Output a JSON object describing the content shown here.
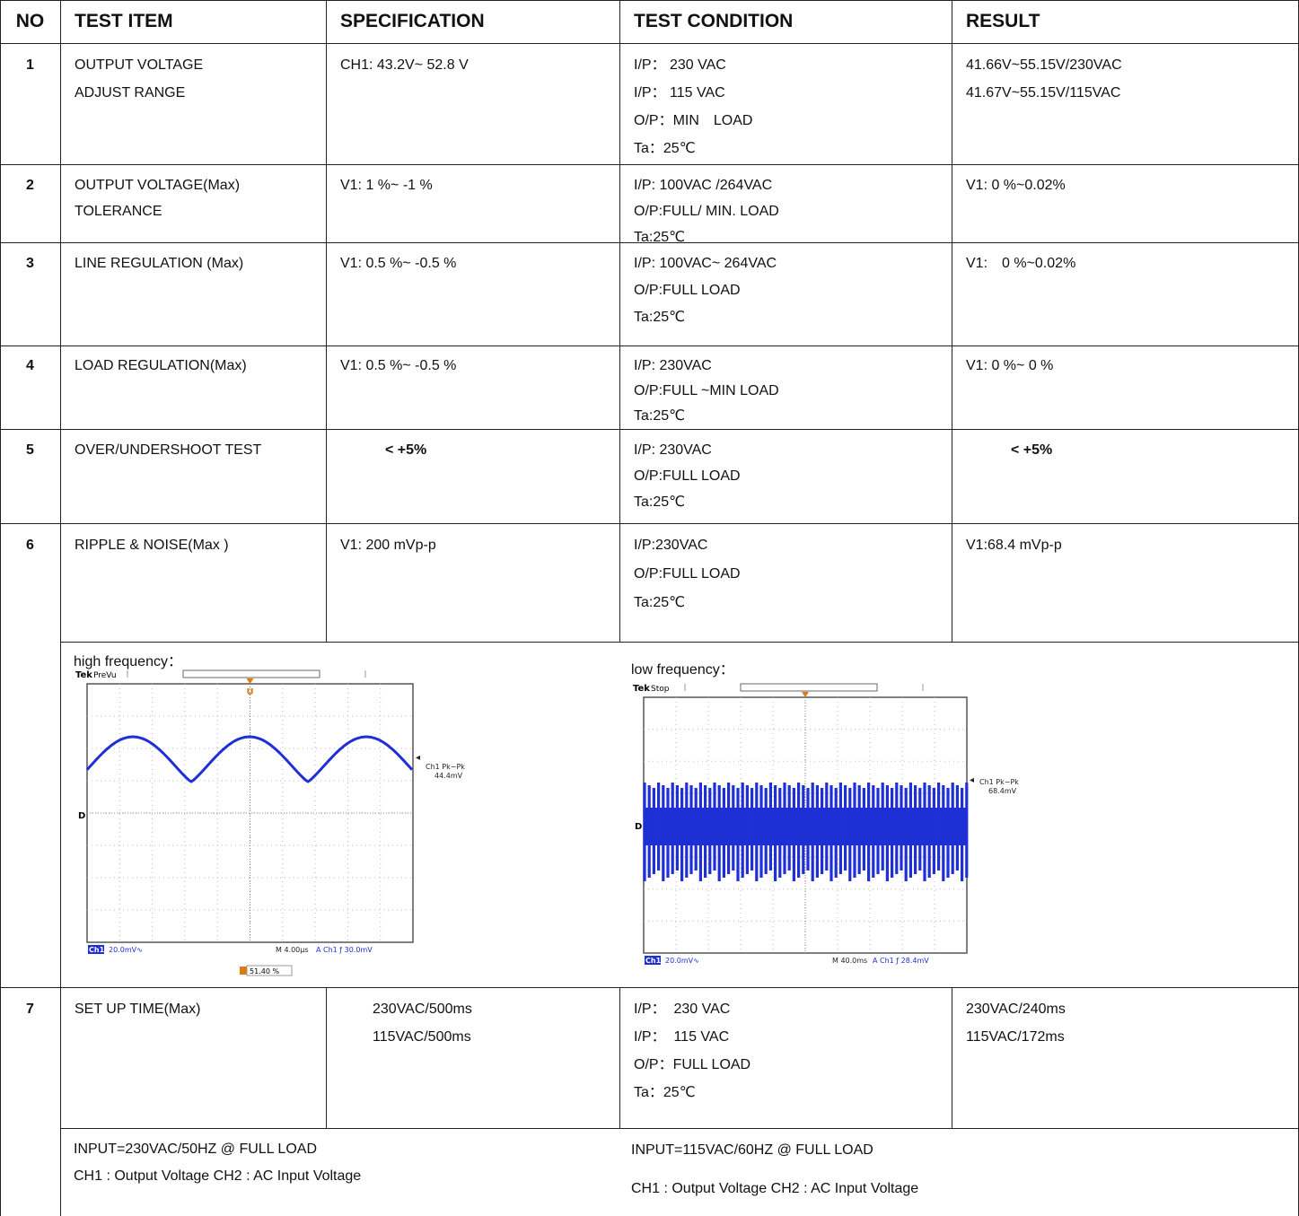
{
  "table": {
    "header": [
      "NO",
      "TEST ITEM",
      "SPECIFICATION",
      "TEST CONDITION",
      "RESULT"
    ],
    "rows": [
      {
        "no": "1",
        "item": [
          "OUTPUT VOLTAGE",
          "ADJUST RANGE"
        ],
        "spec": [
          "CH1: 43.2V~ 52.8 V"
        ],
        "condition": [
          "I/P： 230 VAC",
          "I/P： 115 VAC",
          "O/P：MIN　LOAD",
          "Ta：25℃"
        ],
        "result": [
          "41.66V~55.15V/230VAC",
          "41.67V~55.15V/115VAC"
        ]
      },
      {
        "no": "2",
        "item": [
          "OUTPUT VOLTAGE(Max)",
          "TOLERANCE"
        ],
        "spec": [
          "V1: 1 %~ -1 %"
        ],
        "condition": [
          "I/P: 100VAC /264VAC",
          "O/P:FULL/ MIN. LOAD",
          "Ta:25℃"
        ],
        "result": [
          "V1: 0 %~0.02%"
        ]
      },
      {
        "no": "3",
        "item": [
          "LINE REGULATION (Max)"
        ],
        "spec": [
          "V1: 0.5 %~ -0.5 %"
        ],
        "condition": [
          "I/P: 100VAC~ 264VAC",
          "O/P:FULL LOAD",
          "Ta:25℃"
        ],
        "result": [
          "V1:　0 %~0.02%"
        ]
      },
      {
        "no": "4",
        "item": [
          "LOAD REGULATION(Max)"
        ],
        "spec": [
          "V1: 0.5 %~ -0.5 %"
        ],
        "condition": [
          "I/P: 230VAC",
          "O/P:FULL ~MIN LOAD",
          "Ta:25℃"
        ],
        "result": [
          "V1: 0 %~ 0 %"
        ]
      },
      {
        "no": "5",
        "item": [
          "OVER/UNDERSHOOT TEST"
        ],
        "spec": [
          "< +5%"
        ],
        "condition": [
          "I/P: 230VAC",
          "O/P:FULL LOAD",
          "Ta:25℃"
        ],
        "result": [
          "< +5%"
        ]
      },
      {
        "no": "6",
        "item": [
          "RIPPLE & NOISE(Max )"
        ],
        "spec": [
          "V1: 200 mVp-p"
        ],
        "condition": [
          "I/P:230VAC",
          "O/P:FULL LOAD",
          "Ta:25℃"
        ],
        "result": [
          "V1:68.4 mVp-p"
        ]
      },
      {
        "no": "7",
        "item": [
          "SET UP TIME(Max)"
        ],
        "spec": [
          "230VAC/500ms",
          "115VAC/500ms"
        ],
        "condition": [
          "I/P：  230 VAC",
          "I/P：  115 VAC",
          "O/P：FULL LOAD",
          "Ta：25℃"
        ],
        "result": [
          "230VAC/240ms",
          "115VAC/172ms"
        ]
      }
    ]
  },
  "scopes": [
    {
      "label": "high frequency：",
      "brand": "Tek",
      "mode": "PreVu",
      "cursor_marker": "U",
      "ground_marker": "D",
      "measure": "Ch1 Pk−Pk",
      "measure_value": "44.4mV",
      "channel": "Ch1",
      "scale": "20.0mV∿",
      "timebase": "M 4.00µs",
      "trigger": "A  Ch1  ƒ  30.0mV",
      "cursor_value": "51.40 %"
    },
    {
      "label": "low frequency：",
      "brand": "Tek",
      "mode": "Stop",
      "ground_marker": "D",
      "measure": "Ch1 Pk−Pk",
      "measure_value": "68.4mV",
      "channel": "Ch1",
      "scale": "20.0mV∿",
      "timebase": "M 40.0ms",
      "trigger": "A  Ch1  ƒ  28.4mV"
    }
  ],
  "notes": {
    "left": [
      "INPUT=230VAC/50HZ @ FULL LOAD",
      "CH1 : Output Voltage CH2 : AC Input Voltage"
    ],
    "right": [
      "INPUT=115VAC/60HZ @ FULL LOAD",
      "CH1 : Output Voltage CH2 : AC Input Voltage"
    ]
  }
}
